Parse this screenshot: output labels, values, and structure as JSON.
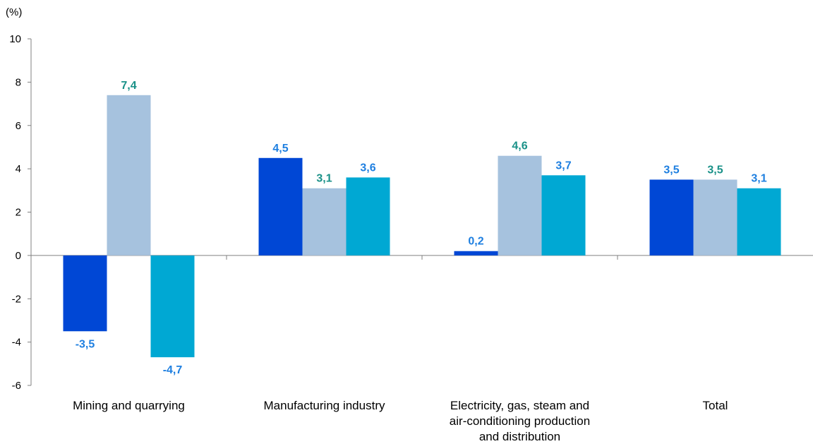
{
  "chart_data": {
    "type": "bar",
    "unit_label": "(%)",
    "ylim": [
      -6,
      10
    ],
    "y_ticks": [
      "10",
      "8",
      "6",
      "4",
      "2",
      "0",
      "-2",
      "-4",
      "-6"
    ],
    "y_tick_values": [
      10,
      8,
      6,
      4,
      2,
      0,
      -2,
      -4,
      -6
    ],
    "categories": [
      [
        "Mining and quarrying"
      ],
      [
        "Manufacturing industry"
      ],
      [
        "Electricity, gas, steam and",
        "air-conditioning production",
        "and distribution"
      ],
      [
        "Total"
      ]
    ],
    "series": [
      {
        "color": "#0047D5",
        "label_color": "#1E7FE0",
        "values": [
          -3.5,
          4.5,
          0.2,
          3.5
        ],
        "labels": [
          "-3,5",
          "4,5",
          "0,2",
          "3,5"
        ]
      },
      {
        "color": "#A6C2DE",
        "label_color": "#1A9188",
        "values": [
          7.4,
          3.1,
          4.6,
          3.5
        ],
        "labels": [
          "7,4",
          "3,1",
          "4,6",
          "3,5"
        ]
      },
      {
        "color": "#00A8D3",
        "label_color": "#1E7FE0",
        "values": [
          -4.7,
          3.6,
          3.7,
          3.1
        ],
        "labels": [
          "-4,7",
          "3,6",
          "3,7",
          "3,1"
        ]
      }
    ],
    "grid": false,
    "legend": "none"
  }
}
